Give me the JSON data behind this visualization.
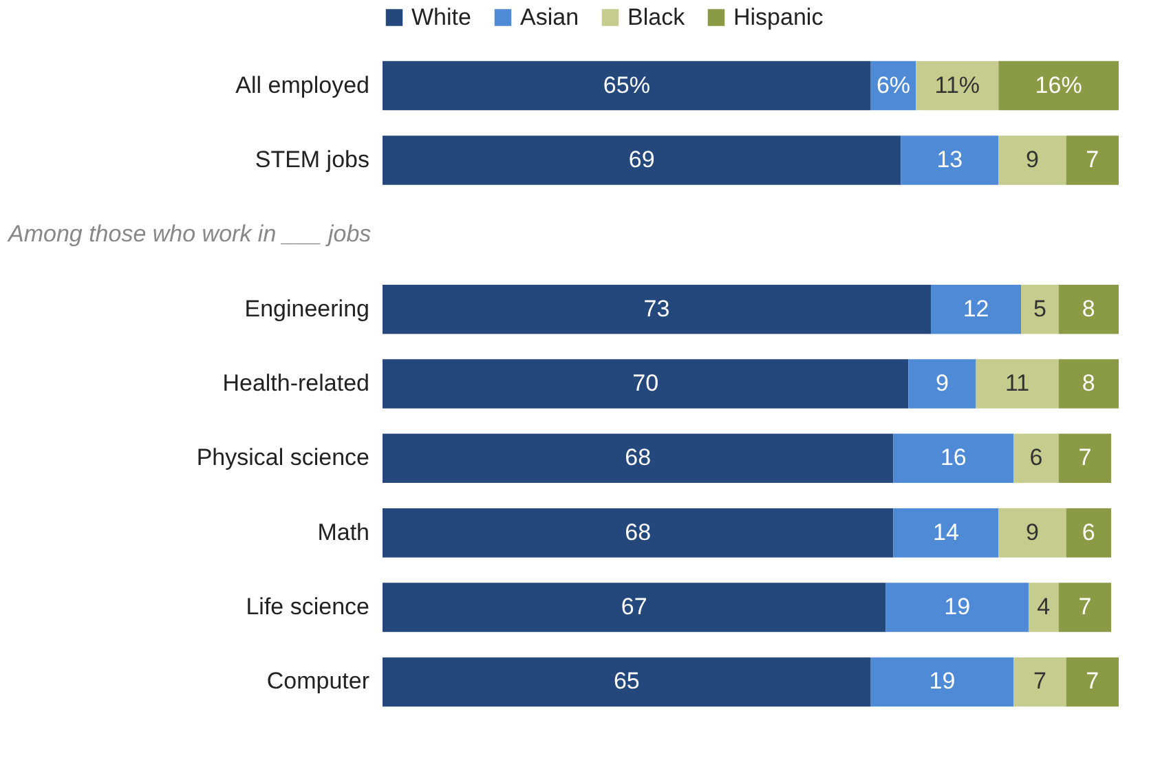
{
  "chart_data": {
    "type": "bar",
    "orientation": "horizontal",
    "stacked": true,
    "legend": "top",
    "categories": [
      "All employed",
      "STEM jobs",
      "Engineering",
      "Health-related",
      "Physical science",
      "Math",
      "Life science",
      "Computer"
    ],
    "annotations": [
      "Among those who work in ___ jobs"
    ],
    "series": [
      {
        "name": "White",
        "color": "#24477c",
        "values": [
          65,
          69,
          73,
          70,
          68,
          68,
          67,
          65
        ],
        "value_labels": [
          "65%",
          "69",
          "73",
          "70",
          "68",
          "68",
          "67",
          "65"
        ]
      },
      {
        "name": "Asian",
        "color": "#4e8ad6",
        "values": [
          6,
          13,
          12,
          9,
          16,
          14,
          19,
          19
        ],
        "value_labels": [
          "6%",
          "13",
          "12",
          "9",
          "16",
          "14",
          "19",
          "19"
        ]
      },
      {
        "name": "Black",
        "color": "#c6cc8e",
        "values": [
          11,
          9,
          5,
          11,
          6,
          9,
          4,
          7
        ],
        "value_labels": [
          "11%",
          "9",
          "5",
          "11",
          "6",
          "9",
          "4",
          "7"
        ]
      },
      {
        "name": "Hispanic",
        "color": "#8a9a45",
        "values": [
          16,
          7,
          8,
          8,
          7,
          6,
          7,
          7
        ],
        "value_labels": [
          "16%",
          "7",
          "8",
          "8",
          "7",
          "6",
          "7",
          "7"
        ]
      }
    ]
  }
}
